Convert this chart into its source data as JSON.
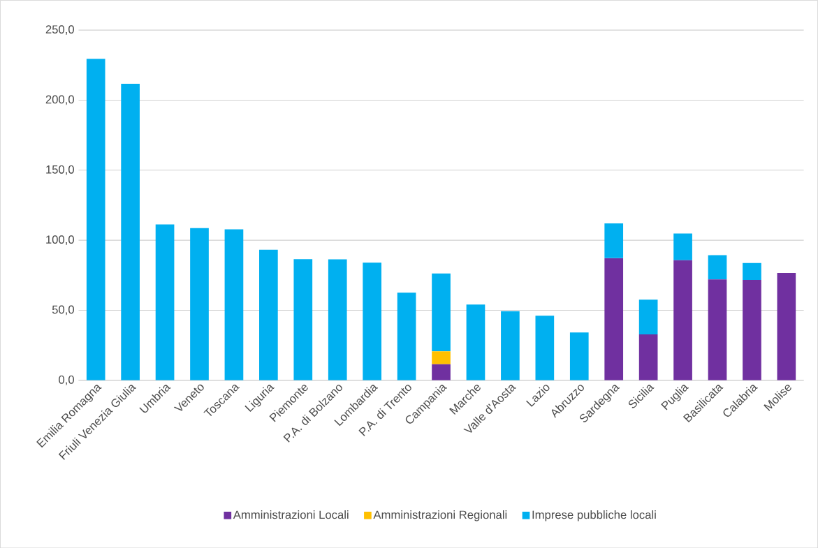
{
  "chart_data": {
    "type": "bar",
    "stacked": true,
    "categories": [
      "Emilia Romagna",
      "Friuli Venezia Giulia",
      "Umbria",
      "Veneto",
      "Toscana",
      "Liguria",
      "Piemonte",
      "P.A. di Bolzano",
      "Lombardia",
      "P.A. di Trento",
      "Campania",
      "Marche",
      "Valle d'Aosta",
      "Lazio",
      "Abruzzo",
      "Sardegna",
      "Sicilia",
      "Puglia",
      "Basilicata",
      "Calabria",
      "Molise"
    ],
    "series": [
      {
        "name": "Amministrazioni Locali",
        "color": "#7030a0",
        "values": [
          null,
          null,
          null,
          null,
          null,
          null,
          null,
          null,
          null,
          null,
          11.5,
          null,
          null,
          null,
          null,
          87.2,
          32.8,
          85.7,
          72.0,
          71.7,
          76.7
        ]
      },
      {
        "name": "Amministrazioni Regionali",
        "color": "#ffc000",
        "values": [
          null,
          null,
          null,
          null,
          null,
          null,
          null,
          null,
          null,
          null,
          9.2,
          null,
          null,
          null,
          null,
          null,
          null,
          null,
          null,
          null,
          null
        ]
      },
      {
        "name": "Imprese pubbliche locali",
        "color": "#00b0f0",
        "values": [
          229.5,
          211.7,
          111.3,
          108.7,
          107.8,
          93.2,
          86.5,
          86.3,
          84.0,
          62.5,
          55.6,
          54.1,
          49.3,
          46.1,
          34.1,
          24.8,
          24.8,
          19.1,
          17.3,
          12.0,
          null
        ]
      }
    ],
    "ylim": [
      0,
      250
    ],
    "yticks": [
      {
        "value": 0,
        "label": "0,0"
      },
      {
        "value": 50,
        "label": "50,0"
      },
      {
        "value": 100,
        "label": "100,0"
      },
      {
        "value": 150,
        "label": "150,0"
      },
      {
        "value": 200,
        "label": "200,0"
      },
      {
        "value": 250,
        "label": "250,0"
      }
    ],
    "grid": "y",
    "legend": "bottom"
  }
}
